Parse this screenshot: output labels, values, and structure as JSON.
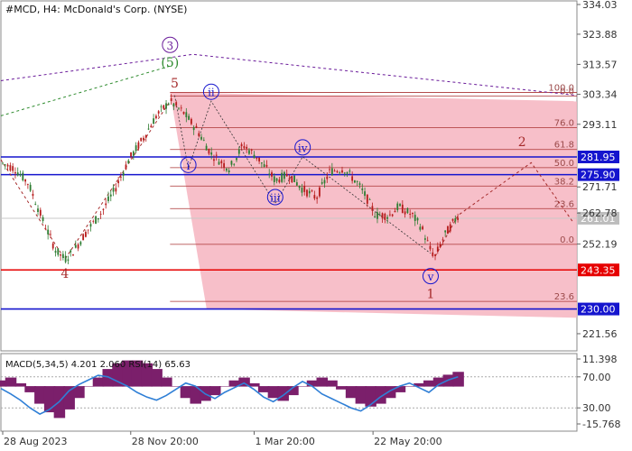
{
  "chart_data": {
    "type": "candlestick",
    "title": "#MCD, H4:  McDonald's Corp. (NYSE)",
    "price_axis": {
      "ticks": [
        "334.03",
        "323.88",
        "313.57",
        "303.34",
        "293.11",
        "271.71",
        "262.78",
        "252.19",
        "221.56"
      ],
      "tick_values": [
        334.03,
        323.88,
        313.57,
        303.34,
        293.11,
        271.71,
        262.78,
        252.19,
        221.56
      ]
    },
    "time_axis": {
      "labels": [
        "28 Aug 2023",
        "28 Nov 20:00",
        "1 Mar 20:00",
        "22 May 20:00"
      ]
    },
    "price_path": [
      [
        0,
        280
      ],
      [
        3,
        278
      ],
      [
        6,
        273
      ],
      [
        9,
        261
      ],
      [
        12,
        250
      ],
      [
        14,
        247
      ],
      [
        16,
        250
      ],
      [
        19,
        257
      ],
      [
        22,
        263
      ],
      [
        25,
        271
      ],
      [
        28,
        281
      ],
      [
        31,
        288
      ],
      [
        34,
        296
      ],
      [
        37,
        301
      ],
      [
        40,
        297
      ],
      [
        43,
        291
      ],
      [
        46,
        283
      ],
      [
        50,
        278
      ],
      [
        53,
        286
      ],
      [
        56,
        282
      ],
      [
        60,
        274
      ],
      [
        63,
        276
      ],
      [
        66,
        271
      ],
      [
        69,
        268
      ],
      [
        72,
        277
      ],
      [
        75,
        278
      ],
      [
        78,
        273
      ],
      [
        80,
        268
      ],
      [
        82,
        262
      ],
      [
        85,
        262
      ],
      [
        87,
        265
      ],
      [
        90,
        262
      ],
      [
        92,
        258
      ],
      [
        94,
        250
      ],
      [
        95,
        248
      ],
      [
        97,
        255
      ],
      [
        100,
        262
      ]
    ],
    "levels": [
      {
        "value": 281.95,
        "label": "281.95",
        "color": "#1515ce",
        "style": "solid"
      },
      {
        "value": 275.9,
        "label": "275.90",
        "color": "#1515ce",
        "style": "solid"
      },
      {
        "value": 261.01,
        "label": "261.01",
        "color": "#c8c8c8",
        "style": "solid"
      },
      {
        "value": 243.35,
        "label": "243.35",
        "color": "#e60000",
        "style": "solid"
      },
      {
        "value": 230.0,
        "label": "230.00",
        "color": "#1515ce",
        "style": "solid"
      }
    ],
    "fib_retracement": [
      {
        "label": "100.0",
        "value": 304.0
      },
      {
        "label": "0.0",
        "value": 302.8
      },
      {
        "label": "76.0",
        "value": 292.0
      },
      {
        "label": "61.8",
        "value": 284.5
      },
      {
        "label": "50.0",
        "value": 278.3
      },
      {
        "label": "38.2",
        "value": 272.0
      },
      {
        "label": "23.6",
        "value": 264.3
      },
      {
        "label": "0.0",
        "value": 252.1
      },
      {
        "label": "23.6",
        "value": 232.6
      }
    ],
    "wave_labels": [
      {
        "text": "3",
        "at": [
          37,
          319
        ],
        "style": "circle",
        "color": "#6a1b9a"
      },
      {
        "text": "(5)",
        "at": [
          37,
          313
        ],
        "style": "plain",
        "color": "#2e8b2e"
      },
      {
        "text": "5",
        "at": [
          38,
          306
        ],
        "style": "plain",
        "color": "#a52a2a"
      },
      {
        "text": "4",
        "at": [
          14,
          241
        ],
        "style": "plain",
        "color": "#a52a2a"
      },
      {
        "text": "ii",
        "at": [
          46,
          303
        ],
        "style": "circle",
        "color": "#1515ce"
      },
      {
        "text": "i",
        "at": [
          41,
          278
        ],
        "style": "circle",
        "color": "#1515ce"
      },
      {
        "text": "iv",
        "at": [
          66,
          284
        ],
        "style": "circle",
        "color": "#1515ce"
      },
      {
        "text": "iii",
        "at": [
          60,
          267
        ],
        "style": "circle",
        "color": "#1515ce"
      },
      {
        "text": "v",
        "at": [
          94,
          240
        ],
        "style": "circle",
        "color": "#1515ce"
      },
      {
        "text": "1",
        "at": [
          94,
          234
        ],
        "style": "plain",
        "color": "#a52a2a"
      },
      {
        "text": "2",
        "at": [
          114,
          286
        ],
        "style": "plain",
        "color": "#a52a2a"
      }
    ],
    "forecast_path": [
      [
        95,
        248
      ],
      [
        100,
        262
      ],
      [
        116,
        280
      ],
      [
        125,
        260
      ]
    ],
    "indicator": {
      "title": "MACD(5,34,5) 4.201 2.060 RSI(14) 65.63",
      "ticks": [
        "11.398",
        "70.00",
        "30.00",
        "-15.768"
      ],
      "tick_values": [
        11.398,
        70.0,
        30.0,
        -15.768
      ],
      "macd_hist": [
        2,
        3,
        1,
        -2,
        -6,
        -9,
        -11,
        -8,
        -4,
        0,
        3,
        6,
        8,
        9,
        9,
        8,
        6,
        3,
        0,
        -4,
        -6,
        -5,
        -3,
        0,
        2,
        3,
        1,
        -2,
        -4,
        -5,
        -3,
        0,
        2,
        3,
        2,
        -1,
        -4,
        -6,
        -7,
        -6,
        -4,
        -2,
        0,
        1,
        2,
        3,
        4,
        5
      ],
      "rsi": [
        55,
        48,
        40,
        30,
        22,
        28,
        38,
        52,
        60,
        66,
        72,
        70,
        64,
        58,
        50,
        44,
        40,
        46,
        54,
        62,
        58,
        48,
        42,
        50,
        56,
        62,
        54,
        44,
        38,
        46,
        56,
        64,
        58,
        48,
        42,
        36,
        30,
        26,
        34,
        44,
        52,
        58,
        62,
        56,
        50,
        60,
        66,
        70
      ]
    }
  }
}
